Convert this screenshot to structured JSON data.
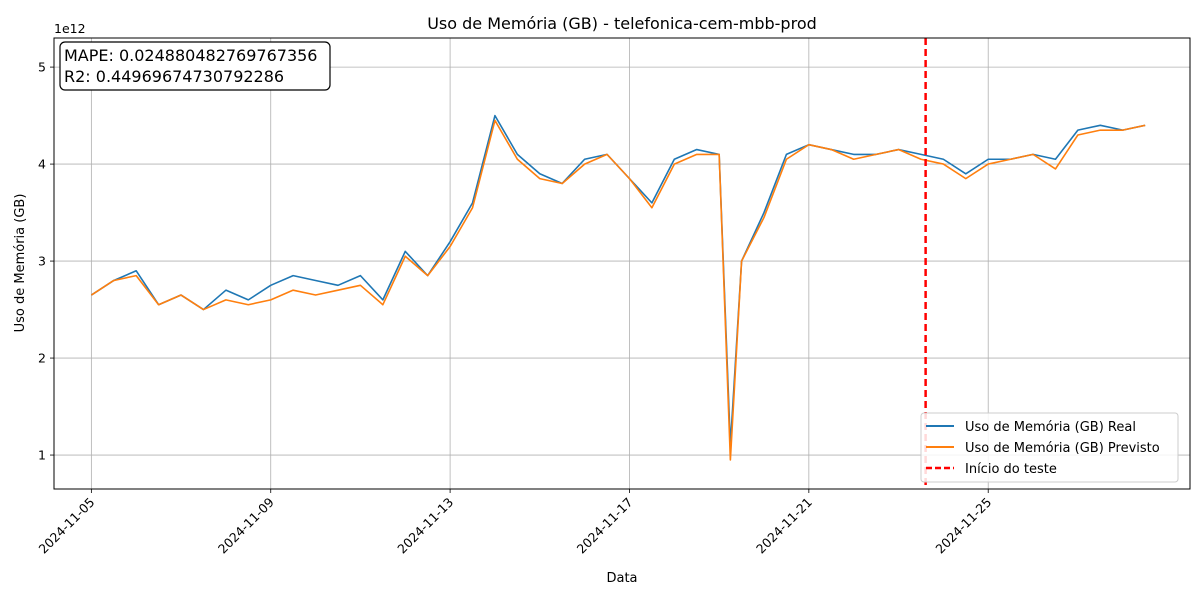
{
  "chart_data": {
    "type": "line",
    "title": "Uso de Memória (GB) - telefonica-cem-mbb-prod",
    "xlabel": "Data",
    "ylabel": "Uso de Memória (GB)",
    "y_offset_label": "1e12",
    "x_range": [
      "2024-11-04T04:00",
      "2024-11-29T12:00"
    ],
    "ylim": [
      0.65,
      5.3
    ],
    "y_ticks": [
      1,
      2,
      3,
      4,
      5
    ],
    "y_tick_labels": [
      "1",
      "2",
      "3",
      "4",
      "5"
    ],
    "x_ticks": [
      "2024-11-05",
      "2024-11-09",
      "2024-11-13",
      "2024-11-17",
      "2024-11-21",
      "2024-11-25"
    ],
    "grid": true,
    "legend_position": "lower-right",
    "annotation": {
      "mape_text": "MAPE: 0.024880482769767356",
      "r2_text": "R2: 0.44969674730792286"
    },
    "test_start": {
      "name": "Início do teste",
      "x": "2024-11-23T14:30",
      "color": "#ff0000"
    },
    "series": [
      {
        "name": "Uso de Memória (GB) Real",
        "color": "#1f77b4",
        "x": [
          "2024-11-05T00:00",
          "2024-11-05T12:00",
          "2024-11-06T00:00",
          "2024-11-06T12:00",
          "2024-11-07T00:00",
          "2024-11-07T12:00",
          "2024-11-08T00:00",
          "2024-11-08T12:00",
          "2024-11-09T00:00",
          "2024-11-09T12:00",
          "2024-11-10T00:00",
          "2024-11-10T12:00",
          "2024-11-11T00:00",
          "2024-11-11T12:00",
          "2024-11-12T00:00",
          "2024-11-12T12:00",
          "2024-11-13T00:00",
          "2024-11-13T12:00",
          "2024-11-14T00:00",
          "2024-11-14T12:00",
          "2024-11-15T00:00",
          "2024-11-15T12:00",
          "2024-11-16T00:00",
          "2024-11-16T12:00",
          "2024-11-17T00:00",
          "2024-11-17T12:00",
          "2024-11-18T00:00",
          "2024-11-18T12:00",
          "2024-11-19T00:00",
          "2024-11-19T06:00",
          "2024-11-19T12:00",
          "2024-11-20T00:00",
          "2024-11-20T12:00",
          "2024-11-21T00:00",
          "2024-11-21T12:00",
          "2024-11-22T00:00",
          "2024-11-22T12:00",
          "2024-11-23T00:00",
          "2024-11-23T12:00",
          "2024-11-24T00:00",
          "2024-11-24T12:00",
          "2024-11-25T00:00",
          "2024-11-25T12:00",
          "2024-11-26T00:00",
          "2024-11-26T12:00",
          "2024-11-27T00:00",
          "2024-11-27T12:00",
          "2024-11-28T00:00",
          "2024-11-28T12:00"
        ],
        "values": [
          2.65,
          2.8,
          2.9,
          2.55,
          2.65,
          2.5,
          2.7,
          2.6,
          2.75,
          2.85,
          2.8,
          2.75,
          2.85,
          2.6,
          3.1,
          2.85,
          3.2,
          3.6,
          4.5,
          4.1,
          3.9,
          3.8,
          4.05,
          4.1,
          3.85,
          3.6,
          4.05,
          4.15,
          4.1,
          1.1,
          3.0,
          3.5,
          4.1,
          4.2,
          4.15,
          4.1,
          4.1,
          4.15,
          4.1,
          4.05,
          3.9,
          4.05,
          4.05,
          4.1,
          4.05,
          4.35,
          4.4,
          4.35,
          4.4
        ]
      },
      {
        "name": "Uso de Memória (GB) Previsto",
        "color": "#ff7f0e",
        "x": [
          "2024-11-05T00:00",
          "2024-11-05T12:00",
          "2024-11-06T00:00",
          "2024-11-06T12:00",
          "2024-11-07T00:00",
          "2024-11-07T12:00",
          "2024-11-08T00:00",
          "2024-11-08T12:00",
          "2024-11-09T00:00",
          "2024-11-09T12:00",
          "2024-11-10T00:00",
          "2024-11-10T12:00",
          "2024-11-11T00:00",
          "2024-11-11T12:00",
          "2024-11-12T00:00",
          "2024-11-12T12:00",
          "2024-11-13T00:00",
          "2024-11-13T12:00",
          "2024-11-14T00:00",
          "2024-11-14T12:00",
          "2024-11-15T00:00",
          "2024-11-15T12:00",
          "2024-11-16T00:00",
          "2024-11-16T12:00",
          "2024-11-17T00:00",
          "2024-11-17T12:00",
          "2024-11-18T00:00",
          "2024-11-18T12:00",
          "2024-11-19T00:00",
          "2024-11-19T06:00",
          "2024-11-19T12:00",
          "2024-11-20T00:00",
          "2024-11-20T12:00",
          "2024-11-21T00:00",
          "2024-11-21T12:00",
          "2024-11-22T00:00",
          "2024-11-22T12:00",
          "2024-11-23T00:00",
          "2024-11-23T12:00",
          "2024-11-24T00:00",
          "2024-11-24T12:00",
          "2024-11-25T00:00",
          "2024-11-25T12:00",
          "2024-11-26T00:00",
          "2024-11-26T12:00",
          "2024-11-27T00:00",
          "2024-11-27T12:00",
          "2024-11-28T00:00",
          "2024-11-28T12:00"
        ],
        "values": [
          2.65,
          2.8,
          2.85,
          2.55,
          2.65,
          2.5,
          2.6,
          2.55,
          2.6,
          2.7,
          2.65,
          2.7,
          2.75,
          2.55,
          3.05,
          2.85,
          3.15,
          3.55,
          4.45,
          4.05,
          3.85,
          3.8,
          4.0,
          4.1,
          3.85,
          3.55,
          4.0,
          4.1,
          4.1,
          0.95,
          3.0,
          3.45,
          4.05,
          4.2,
          4.15,
          4.05,
          4.1,
          4.15,
          4.05,
          4.0,
          3.85,
          4.0,
          4.05,
          4.1,
          3.95,
          4.3,
          4.35,
          4.35,
          4.4
        ]
      }
    ]
  }
}
